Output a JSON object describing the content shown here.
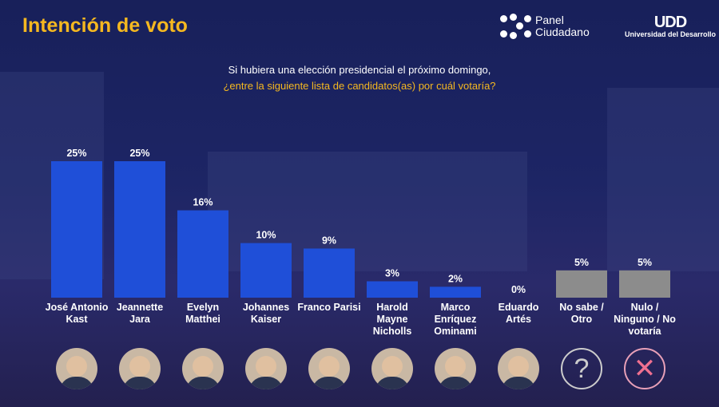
{
  "header": {
    "title": "Intención de voto",
    "question_line1": "Si hubiera una elección presidencial el próximo domingo,",
    "question_line2": "¿entre la siguiente lista de candidatos(as) por cuál votaría?"
  },
  "logos": {
    "panel": "Panel Ciudadano",
    "udd_mark": "UDD",
    "udd": "Universidad del Desarrollo"
  },
  "colors": {
    "candidate_bar": "#1f4fd8",
    "other_bar": "#8c8c8c",
    "title": "#f5b820"
  },
  "chart_data": {
    "type": "bar",
    "ylim": [
      0,
      25
    ],
    "grid": false,
    "unit": "%",
    "categories": [
      "José Antonio Kast",
      "Jeannette Jara",
      "Evelyn Matthei",
      "Johannes Kaiser",
      "Franco Parisi",
      "Harold Mayne Nicholls",
      "Marco Enríquez Ominami",
      "Eduardo Artés",
      "No sabe / Otro",
      "Nulo / Ninguno / No votaría"
    ],
    "values": [
      25,
      25,
      16,
      10,
      9,
      3,
      2,
      0,
      5,
      5
    ],
    "labels": [
      "25%",
      "25%",
      "16%",
      "10%",
      "9%",
      "3%",
      "2%",
      "0%",
      "5%",
      "5%"
    ],
    "icons": [
      "photo",
      "photo",
      "photo",
      "photo",
      "photo",
      "photo",
      "photo",
      "photo",
      "question-icon",
      "x-icon"
    ]
  }
}
